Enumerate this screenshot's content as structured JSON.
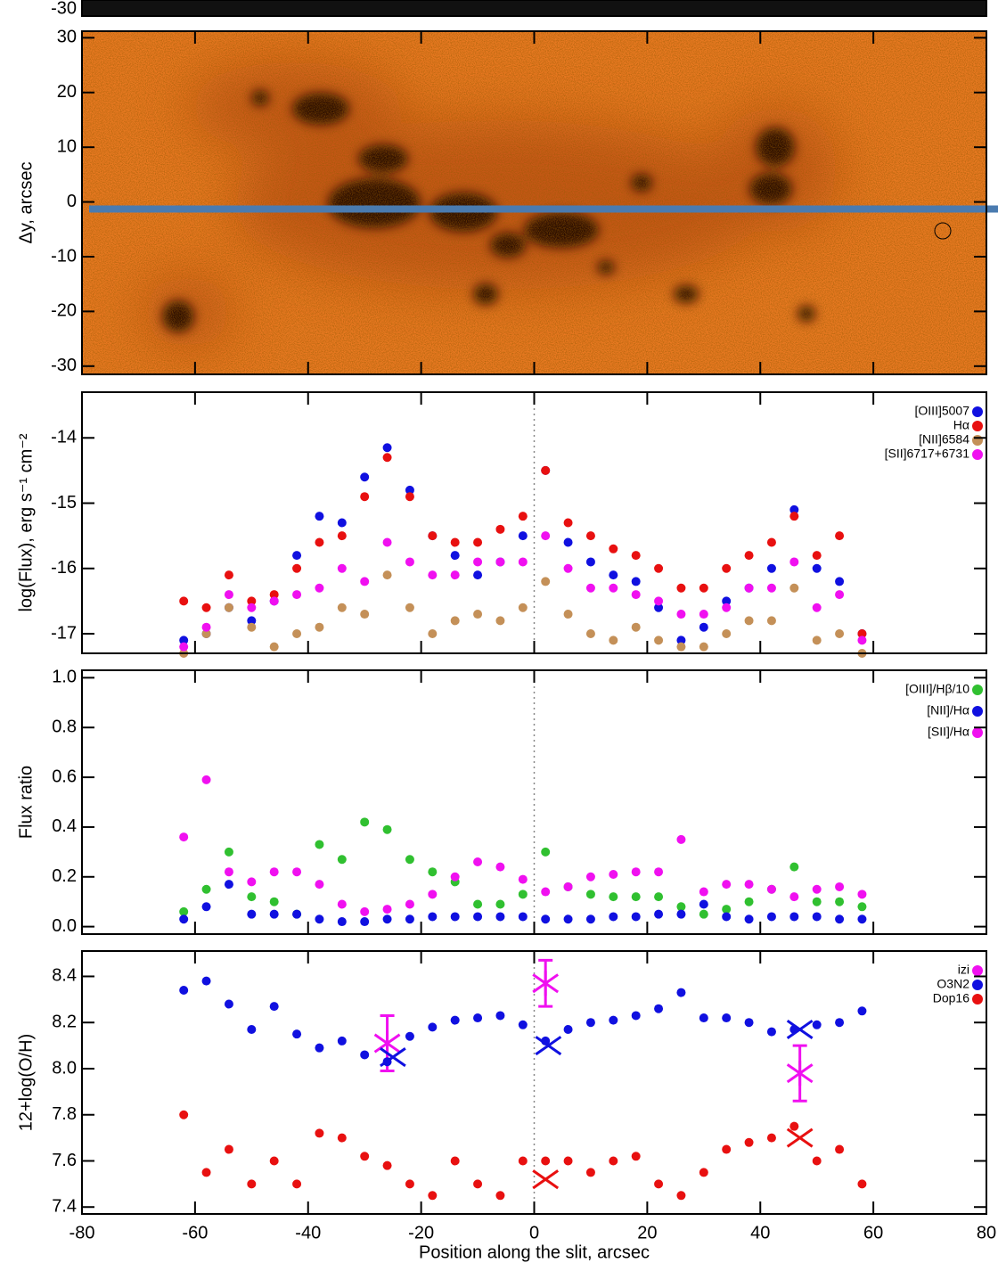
{
  "chart_data": [
    {
      "type": "strip",
      "yticks": [
        -30
      ]
    },
    {
      "type": "image",
      "ylabel": "Δy, arcsec",
      "xlim": [
        -80,
        80
      ],
      "ylim": [
        -31.5,
        31.2
      ],
      "xticks": [
        -80,
        -60,
        -40,
        -20,
        0,
        20,
        40,
        60,
        80
      ],
      "yticks": [
        -30,
        -20,
        -10,
        0,
        10,
        20,
        30
      ],
      "slit_y": -1.3,
      "slit_color": "#4a7bb0"
    },
    {
      "type": "scatter",
      "ylabel": "log(Flux), erg s⁻¹ cm⁻²",
      "xlim": [
        -80,
        80
      ],
      "ylim": [
        -17.3,
        -13.3
      ],
      "xticks": [
        -80,
        -60,
        -40,
        -20,
        0,
        20,
        40,
        60,
        80
      ],
      "yticks": [
        -17,
        -16,
        -15,
        -14
      ],
      "reference_line_x": 0,
      "x": [
        -62,
        -58,
        -54,
        -50,
        -46,
        -42,
        -38,
        -34,
        -30,
        -26,
        -22,
        -18,
        -14,
        -10,
        -6,
        -2,
        2,
        6,
        10,
        14,
        18,
        22,
        26,
        30,
        34,
        38,
        42,
        46,
        50,
        54,
        58
      ],
      "series": [
        {
          "name": "[OIII]5007",
          "color": "#1010e0",
          "values": [
            -17.1,
            -17.0,
            -16.6,
            -16.8,
            -16.5,
            -15.8,
            -15.2,
            -15.3,
            -14.6,
            -14.15,
            -14.8,
            -15.5,
            -15.8,
            -16.1,
            -15.9,
            -15.5,
            -14.5,
            -15.6,
            -15.9,
            -16.1,
            -16.2,
            -16.6,
            -17.1,
            -16.9,
            -16.5,
            -16.3,
            -16.0,
            -15.1,
            -16.0,
            -16.2,
            -17.0
          ]
        },
        {
          "name": "Hα",
          "color": "#e81010",
          "values": [
            -16.5,
            -16.6,
            -16.1,
            -16.5,
            -16.4,
            -16.0,
            -15.6,
            -15.5,
            -14.9,
            -14.3,
            -14.9,
            -15.5,
            -15.6,
            -15.6,
            -15.4,
            -15.2,
            -14.5,
            -15.3,
            -15.5,
            -15.7,
            -15.8,
            -16.0,
            -16.3,
            -16.3,
            -16.0,
            -15.8,
            -15.6,
            -15.2,
            -15.8,
            -15.5,
            -17.0
          ]
        },
        {
          "name": "[NII]6584",
          "color": "#c49058",
          "values": [
            -17.3,
            -17.0,
            -16.6,
            -16.9,
            -17.2,
            -17.0,
            -16.9,
            -16.6,
            -16.7,
            -16.1,
            -16.6,
            -17.0,
            -16.8,
            -16.7,
            -16.8,
            -16.6,
            -16.2,
            -16.7,
            -17.0,
            -17.1,
            -16.9,
            -17.1,
            -17.2,
            -17.2,
            -17.0,
            -16.8,
            -16.8,
            -16.3,
            -17.1,
            -17.0,
            -17.3
          ]
        },
        {
          "name": "[SII]6717+6731",
          "color": "#f010f0",
          "values": [
            -17.2,
            -16.9,
            -16.4,
            -16.6,
            -16.5,
            -16.4,
            -16.3,
            -16.0,
            -16.2,
            -15.6,
            -15.9,
            -16.1,
            -16.1,
            -15.9,
            -15.9,
            -15.9,
            -15.5,
            -16.0,
            -16.3,
            -16.3,
            -16.4,
            -16.5,
            -16.7,
            -16.7,
            -16.6,
            -16.3,
            -16.3,
            -15.9,
            -16.6,
            -16.4,
            -17.1
          ]
        }
      ]
    },
    {
      "type": "scatter",
      "ylabel": "Flux ratio",
      "xlim": [
        -80,
        80
      ],
      "ylim": [
        -0.03,
        1.03
      ],
      "xticks": [
        -80,
        -60,
        -40,
        -20,
        0,
        20,
        40,
        60,
        80
      ],
      "yticks": [
        {
          "value": 0,
          "label": "0.0"
        },
        0.2,
        0.4,
        0.6,
        0.8,
        {
          "value": 1,
          "label": "1.0"
        }
      ],
      "reference_line_x": 0,
      "x": [
        -62,
        -58,
        -54,
        -50,
        -46,
        -42,
        -38,
        -34,
        -30,
        -26,
        -22,
        -18,
        -14,
        -10,
        -6,
        -2,
        2,
        6,
        10,
        14,
        18,
        22,
        26,
        30,
        34,
        38,
        42,
        46,
        50,
        54,
        58
      ],
      "series": [
        {
          "name": "[OIII]/Hβ/10",
          "color": "#30c030",
          "values": [
            0.06,
            0.15,
            0.3,
            0.12,
            0.1,
            0.05,
            0.33,
            0.27,
            0.42,
            0.39,
            0.27,
            0.22,
            0.18,
            0.09,
            0.09,
            0.13,
            0.3,
            0.16,
            0.13,
            0.12,
            0.12,
            0.12,
            0.08,
            0.05,
            0.07,
            0.1,
            0.15,
            0.24,
            0.1,
            0.1,
            0.08
          ]
        },
        {
          "name": "[NII]/Hα",
          "color": "#1010e0",
          "values": [
            0.03,
            0.08,
            0.17,
            0.05,
            0.05,
            0.05,
            0.03,
            0.02,
            0.02,
            0.03,
            0.03,
            0.04,
            0.04,
            0.04,
            0.04,
            0.04,
            0.03,
            0.03,
            0.03,
            0.04,
            0.04,
            0.05,
            0.05,
            0.09,
            0.04,
            0.03,
            0.04,
            0.04,
            0.04,
            0.03,
            0.03
          ]
        },
        {
          "name": "[SII]/Hα",
          "color": "#f010f0",
          "values": [
            0.36,
            0.59,
            0.22,
            0.18,
            0.22,
            0.22,
            0.17,
            0.09,
            0.06,
            0.07,
            0.09,
            0.13,
            0.2,
            0.26,
            0.24,
            0.19,
            0.14,
            0.16,
            0.2,
            0.21,
            0.22,
            0.22,
            0.35,
            0.14,
            0.17,
            0.17,
            0.15,
            0.12,
            0.15,
            0.16,
            0.13
          ]
        }
      ]
    },
    {
      "type": "scatter",
      "ylabel": "12+log(O/H)",
      "xlabel": "Position along the slit, arcsec",
      "xlim": [
        -80,
        80
      ],
      "ylim": [
        7.37,
        8.51
      ],
      "xticks": [
        -80,
        -60,
        -40,
        -20,
        0,
        20,
        40,
        60,
        80
      ],
      "yticks": [
        7.4,
        7.6,
        7.8,
        {
          "value": 8,
          "label": "8.0"
        },
        8.2,
        8.4
      ],
      "reference_line_x": 0,
      "x": [
        -62,
        -58,
        -54,
        -50,
        -46,
        -42,
        -38,
        -34,
        -30,
        -26,
        -22,
        -18,
        -14,
        -10,
        -6,
        -2,
        2,
        6,
        10,
        14,
        18,
        22,
        26,
        30,
        34,
        38,
        42,
        46,
        50,
        54,
        58
      ],
      "series": [
        {
          "name": "izi",
          "color": "#f010f0",
          "marker": "asterisk",
          "x": [
            -26,
            2,
            47
          ],
          "values": [
            8.11,
            8.37,
            7.98
          ],
          "errors": [
            0.12,
            0.1,
            0.12
          ]
        },
        {
          "name": "O3N2",
          "color": "#1010e0",
          "values": [
            8.34,
            8.38,
            8.28,
            8.17,
            8.27,
            8.15,
            8.09,
            8.12,
            8.06,
            8.03,
            8.14,
            8.18,
            8.21,
            8.22,
            8.23,
            8.19,
            8.12,
            8.17,
            8.2,
            8.21,
            8.23,
            8.26,
            8.33,
            8.22,
            8.22,
            8.2,
            8.16,
            8.17,
            8.19,
            8.2,
            8.25
          ]
        },
        {
          "name": "Dop16",
          "color": "#e81010",
          "values": [
            7.8,
            7.55,
            7.65,
            7.5,
            7.6,
            7.5,
            7.72,
            7.7,
            7.62,
            7.58,
            7.5,
            7.45,
            7.6,
            7.5,
            7.45,
            7.6,
            7.6,
            7.6,
            7.55,
            7.6,
            7.62,
            7.5,
            7.45,
            7.55,
            7.65,
            7.68,
            7.7,
            7.75,
            7.6,
            7.65,
            7.5
          ]
        },
        {
          "color": "#1010e0",
          "marker": "x",
          "x": [
            -25,
            2.5,
            47
          ],
          "values": [
            8.05,
            8.1,
            8.17
          ]
        },
        {
          "color": "#e81010",
          "marker": "x",
          "x": [
            2,
            47
          ],
          "values": [
            7.52,
            7.7
          ]
        }
      ]
    }
  ]
}
